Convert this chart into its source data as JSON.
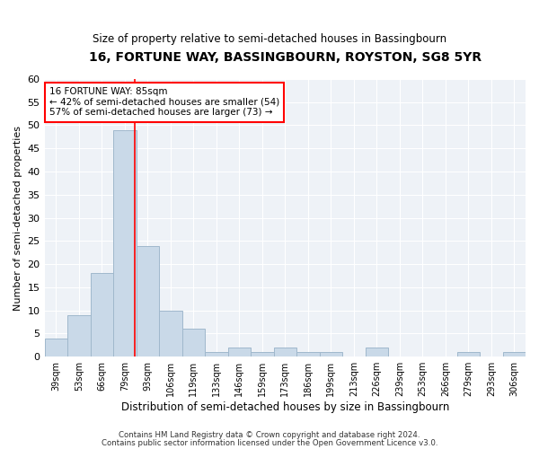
{
  "title": "16, FORTUNE WAY, BASSINGBOURN, ROYSTON, SG8 5YR",
  "subtitle": "Size of property relative to semi-detached houses in Bassingbourn",
  "xlabel": "Distribution of semi-detached houses by size in Bassingbourn",
  "ylabel": "Number of semi-detached properties",
  "footer1": "Contains HM Land Registry data © Crown copyright and database right 2024.",
  "footer2": "Contains public sector information licensed under the Open Government Licence v3.0.",
  "categories": [
    "39sqm",
    "53sqm",
    "66sqm",
    "79sqm",
    "93sqm",
    "106sqm",
    "119sqm",
    "133sqm",
    "146sqm",
    "159sqm",
    "173sqm",
    "186sqm",
    "199sqm",
    "213sqm",
    "226sqm",
    "239sqm",
    "253sqm",
    "266sqm",
    "279sqm",
    "293sqm",
    "306sqm"
  ],
  "values": [
    4,
    9,
    18,
    49,
    24,
    10,
    6,
    1,
    2,
    1,
    2,
    1,
    1,
    0,
    2,
    0,
    0,
    0,
    1,
    0,
    1
  ],
  "bar_color": "#c9d9e8",
  "bar_edgecolor": "#a0b8cc",
  "red_line_x": 3.43,
  "annotation_title": "16 FORTUNE WAY: 85sqm",
  "annotation_line1": "← 42% of semi-detached houses are smaller (54)",
  "annotation_line2": "57% of semi-detached houses are larger (73) →",
  "ylim": [
    0,
    60
  ],
  "yticks": [
    0,
    5,
    10,
    15,
    20,
    25,
    30,
    35,
    40,
    45,
    50,
    55,
    60
  ]
}
